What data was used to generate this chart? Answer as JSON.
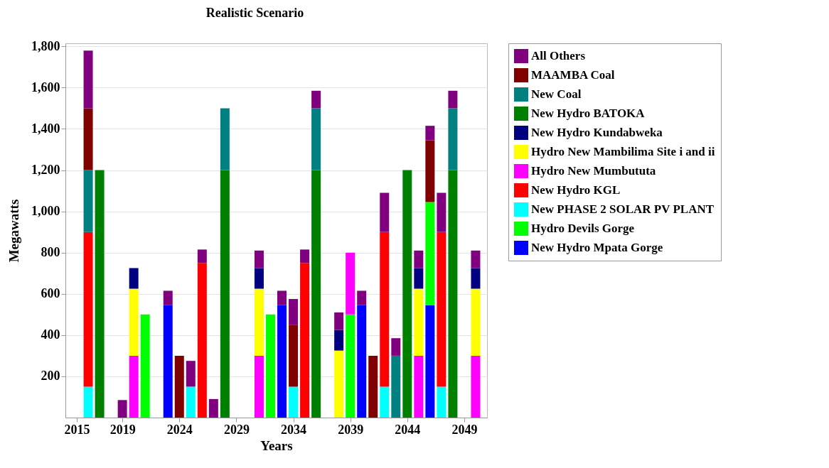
{
  "chart_data": {
    "type": "bar",
    "title": "Realistic Scenario",
    "xlabel": "Years",
    "ylabel": "Megawatts",
    "stacked": true,
    "x": [
      2016,
      2017,
      2019,
      2020,
      2021,
      2023,
      2024,
      2025,
      2026,
      2027,
      2028,
      2031,
      2032,
      2033,
      2034,
      2035,
      2036,
      2038,
      2039,
      2040,
      2041,
      2042,
      2043,
      2044,
      2045,
      2046,
      2047,
      2048,
      2050
    ],
    "series": [
      {
        "name": "New Hydro Mpata Gorge",
        "color": "#0000ff",
        "values": [
          null,
          null,
          null,
          null,
          null,
          545,
          null,
          null,
          null,
          null,
          null,
          null,
          null,
          545,
          null,
          null,
          null,
          null,
          null,
          545,
          null,
          null,
          null,
          null,
          null,
          545,
          null,
          null,
          null
        ]
      },
      {
        "name": "Hydro Devils Gorge",
        "color": "#00ff00",
        "values": [
          null,
          null,
          null,
          null,
          500,
          null,
          null,
          null,
          null,
          null,
          null,
          null,
          500,
          null,
          null,
          null,
          null,
          null,
          500,
          null,
          null,
          null,
          null,
          null,
          null,
          500,
          null,
          null,
          null
        ]
      },
      {
        "name": "New PHASE 2 SOLAR PV PLANT",
        "color": "#00ffff",
        "values": [
          150,
          null,
          null,
          null,
          null,
          null,
          null,
          150,
          null,
          null,
          null,
          null,
          null,
          null,
          150,
          null,
          null,
          null,
          null,
          null,
          null,
          150,
          null,
          null,
          null,
          null,
          150,
          null,
          null
        ]
      },
      {
        "name": "New Hydro KGL",
        "color": "#ff0000",
        "values": [
          750,
          null,
          null,
          null,
          null,
          null,
          null,
          null,
          750,
          null,
          null,
          null,
          null,
          null,
          null,
          750,
          null,
          null,
          null,
          null,
          null,
          750,
          null,
          null,
          null,
          null,
          750,
          null,
          null
        ]
      },
      {
        "name": "Hydro New Mumbututa",
        "color": "#ff00ff",
        "values": [
          null,
          null,
          null,
          300,
          null,
          null,
          null,
          null,
          null,
          null,
          null,
          300,
          null,
          null,
          null,
          null,
          null,
          null,
          300,
          null,
          null,
          null,
          null,
          null,
          300,
          null,
          null,
          null,
          300
        ]
      },
      {
        "name": "Hydro New Mambilima Site i and ii",
        "color": "#ffff00",
        "values": [
          null,
          null,
          null,
          325,
          null,
          null,
          null,
          null,
          null,
          null,
          null,
          325,
          null,
          null,
          null,
          null,
          null,
          325,
          null,
          null,
          null,
          null,
          null,
          null,
          325,
          null,
          null,
          null,
          325
        ]
      },
      {
        "name": "New Hydro Kundabweka",
        "color": "#000080",
        "values": [
          null,
          null,
          null,
          100,
          null,
          null,
          null,
          null,
          null,
          null,
          null,
          100,
          null,
          null,
          null,
          null,
          null,
          100,
          null,
          null,
          null,
          null,
          null,
          null,
          100,
          null,
          null,
          null,
          100
        ]
      },
      {
        "name": "New Hydro BATOKA",
        "color": "#008000",
        "values": [
          null,
          1200,
          null,
          null,
          null,
          null,
          null,
          null,
          null,
          null,
          1200,
          null,
          null,
          null,
          null,
          null,
          1200,
          null,
          null,
          null,
          null,
          null,
          null,
          1200,
          null,
          null,
          null,
          1200,
          null
        ]
      },
      {
        "name": "New Coal",
        "color": "#008080",
        "values": [
          300,
          null,
          null,
          null,
          null,
          null,
          null,
          null,
          null,
          null,
          300,
          null,
          null,
          null,
          null,
          null,
          300,
          null,
          null,
          null,
          null,
          null,
          300,
          null,
          null,
          null,
          null,
          300,
          null
        ]
      },
      {
        "name": "MAAMBA Coal",
        "color": "#800000",
        "values": [
          300,
          null,
          null,
          null,
          null,
          null,
          300,
          null,
          null,
          null,
          null,
          null,
          null,
          null,
          300,
          null,
          null,
          null,
          null,
          null,
          300,
          null,
          null,
          null,
          null,
          300,
          null,
          null,
          null
        ]
      },
      {
        "name": "All Others",
        "color": "#800080",
        "values": [
          280,
          null,
          85,
          null,
          null,
          70,
          null,
          125,
          65,
          90,
          null,
          85,
          null,
          70,
          125,
          65,
          85,
          85,
          null,
          70,
          null,
          190,
          85,
          null,
          85,
          70,
          190,
          85,
          85
        ]
      }
    ],
    "xlim": [
      2014,
      2051
    ],
    "xticks": [
      2015,
      2019,
      2024,
      2029,
      2034,
      2039,
      2044,
      2049
    ],
    "ylim": [
      0,
      1815
    ],
    "yticks": [
      200,
      400,
      600,
      800,
      {
        "value": 1000,
        "label": "1,000"
      },
      {
        "value": 1200,
        "label": "1,200"
      },
      {
        "value": 1400,
        "label": "1,400"
      },
      {
        "value": 1600,
        "label": "1,600"
      },
      {
        "value": 1800,
        "label": "1,800"
      }
    ],
    "grid": "y",
    "legend": "right"
  }
}
